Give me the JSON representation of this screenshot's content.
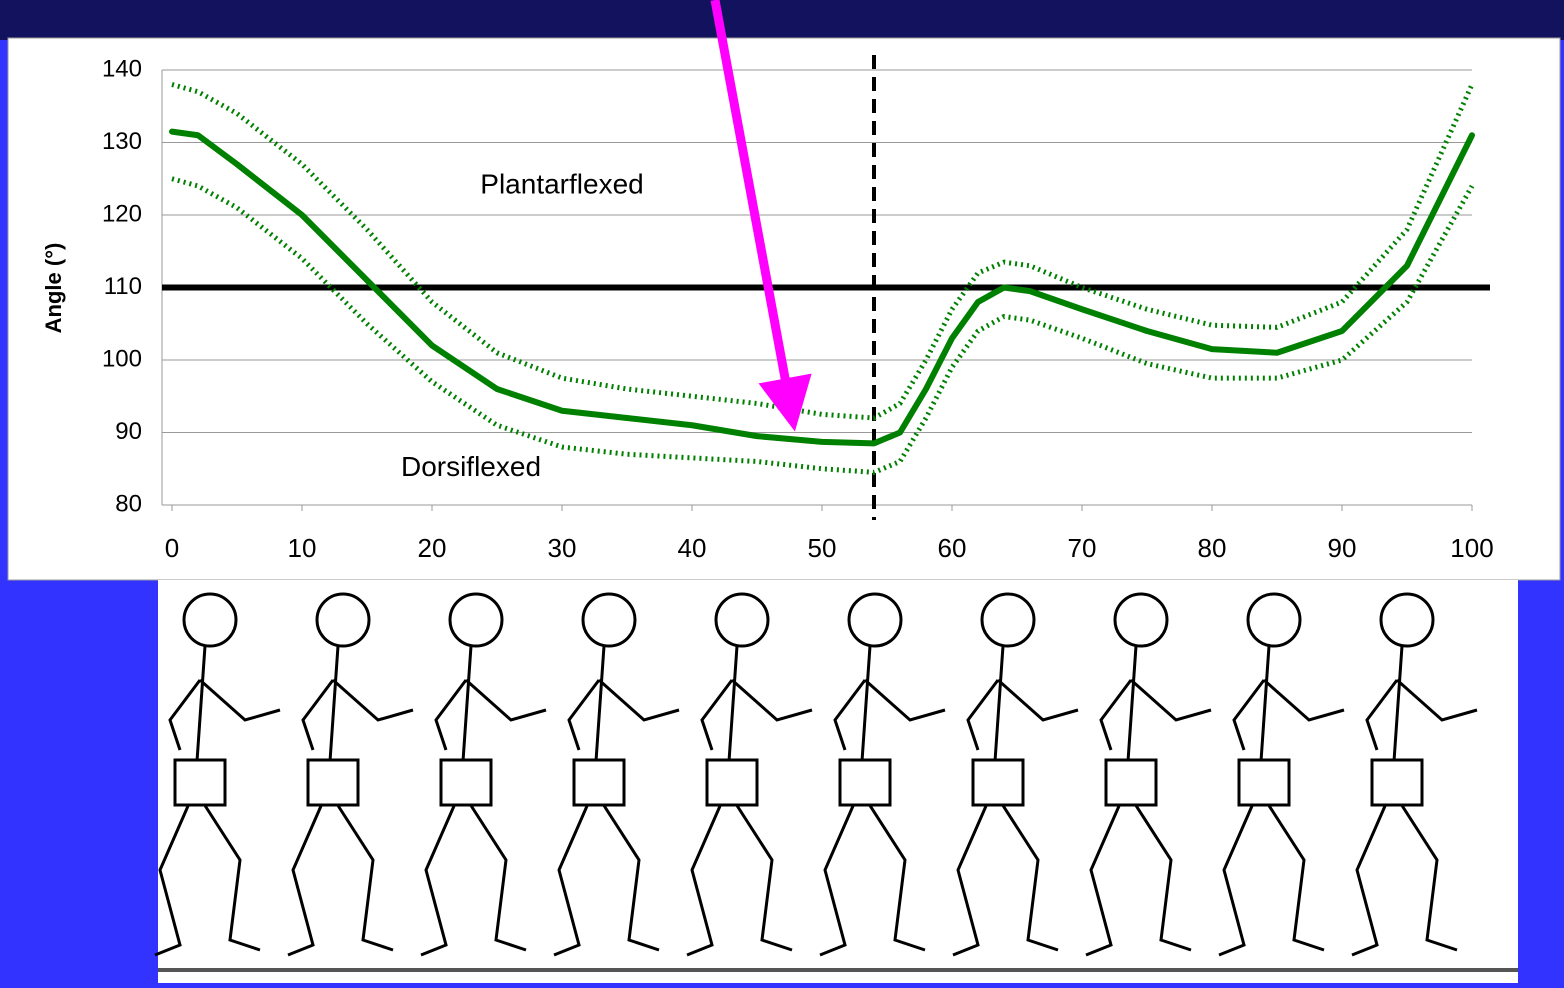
{
  "chart_data": {
    "type": "line",
    "y_label": "Angle (°)",
    "annotations": [
      {
        "text": "Plantarflexed",
        "x": 30,
        "y": 124
      },
      {
        "text": "Dorsiflexed",
        "x": 23,
        "y": 85
      }
    ],
    "x": [
      0,
      2,
      5,
      10,
      15,
      20,
      25,
      30,
      35,
      40,
      45,
      50,
      54,
      56,
      58,
      60,
      62,
      64,
      66,
      70,
      75,
      80,
      85,
      90,
      95,
      100
    ],
    "series": [
      {
        "color": "#008000",
        "line_style": "solid",
        "values": [
          131.5,
          131,
          127,
          120,
          111,
          102,
          96,
          93,
          92,
          91,
          89.5,
          88.7,
          88.5,
          90,
          96,
          103,
          108,
          110,
          109.5,
          107,
          104,
          101.5,
          101,
          104,
          113,
          131
        ]
      },
      {
        "color": "#008000",
        "line_style": "dotted",
        "values": [
          138,
          137,
          134,
          127,
          118,
          108,
          101,
          97.5,
          96,
          95,
          94,
          92.5,
          92,
          94,
          100,
          107,
          112,
          113.5,
          113,
          110,
          107,
          104.8,
          104.5,
          108,
          118,
          138
        ]
      },
      {
        "color": "#008000",
        "line_style": "dotted",
        "values": [
          125,
          124,
          121,
          114,
          105,
          97,
          91,
          88,
          87,
          86.5,
          86,
          85,
          84.5,
          86,
          92,
          99,
          104,
          106,
          105.5,
          103,
          99.5,
          97.5,
          97.5,
          100,
          108,
          124
        ]
      }
    ],
    "reference_y": 110,
    "reference_x": 54,
    "xlim": [
      0,
      100
    ],
    "xticks": [
      0,
      10,
      20,
      30,
      40,
      50,
      60,
      70,
      80,
      90,
      100
    ],
    "ylim": [
      80,
      140
    ],
    "yticks": [
      80,
      90,
      100,
      110,
      120,
      130,
      140
    ],
    "grid": true
  }
}
